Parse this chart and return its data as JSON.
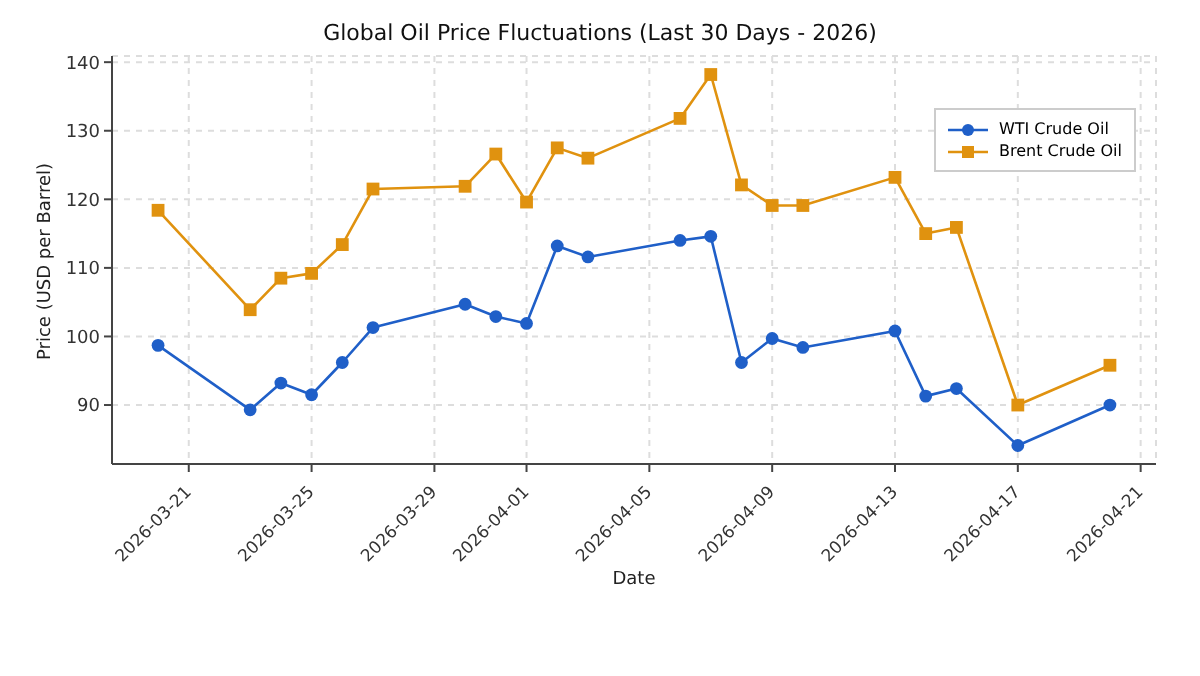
{
  "chart_data": {
    "type": "line",
    "title": "Global Oil Price Fluctuations (Last 30 Days - 2026)",
    "xlabel": "Date",
    "ylabel": "Price (USD per Barrel)",
    "x": [
      "2026-03-20",
      "2026-03-23",
      "2026-03-24",
      "2026-03-25",
      "2026-03-26",
      "2026-03-27",
      "2026-03-30",
      "2026-03-31",
      "2026-04-01",
      "2026-04-02",
      "2026-04-03",
      "2026-04-06",
      "2026-04-07",
      "2026-04-08",
      "2026-04-09",
      "2026-04-10",
      "2026-04-13",
      "2026-04-14",
      "2026-04-15",
      "2026-04-17",
      "2026-04-20"
    ],
    "series": [
      {
        "name": "WTI Crude Oil",
        "color": "#1f5fc8",
        "marker": "circle",
        "values": [
          98.7,
          89.3,
          93.2,
          91.5,
          96.2,
          101.3,
          104.7,
          102.9,
          101.9,
          113.2,
          111.6,
          114.0,
          114.6,
          96.2,
          99.7,
          98.4,
          100.8,
          91.3,
          92.4,
          84.1,
          90.0
        ]
      },
      {
        "name": "Brent Crude Oil",
        "color": "#e0920f",
        "marker": "square",
        "values": [
          118.4,
          103.9,
          108.5,
          109.2,
          113.4,
          121.5,
          121.9,
          126.6,
          119.6,
          127.5,
          126.0,
          131.8,
          138.2,
          122.1,
          119.1,
          119.1,
          123.2,
          115.0,
          115.9,
          90.0,
          95.8
        ]
      }
    ],
    "xlim": [
      "2026-03-18T12:00",
      "2026-04-21T12:00"
    ],
    "xticks": [
      "2026-03-21",
      "2026-03-25",
      "2026-03-29",
      "2026-04-01",
      "2026-04-05",
      "2026-04-09",
      "2026-04-13",
      "2026-04-17",
      "2026-04-21"
    ],
    "ylim": [
      81.4,
      140.9
    ],
    "yticks": [
      90,
      100,
      110,
      120,
      130,
      140
    ],
    "grid": true,
    "line_style": "solid",
    "legend": "top right"
  }
}
